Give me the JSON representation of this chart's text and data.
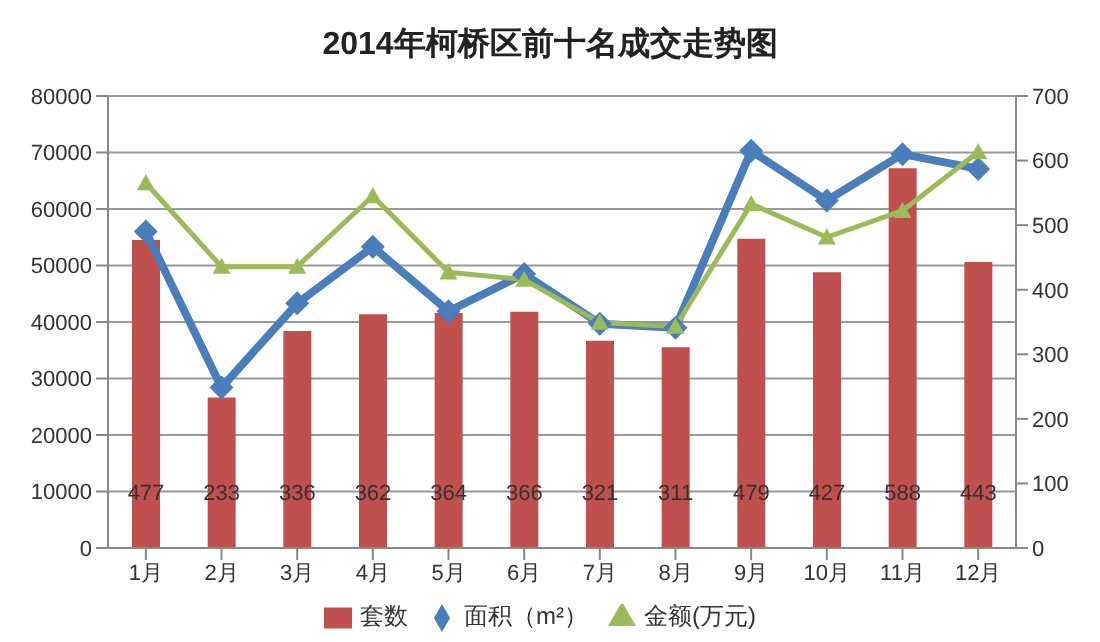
{
  "chart_data": {
    "type": "bar",
    "title": "2014年柯桥区前十名成交走势图",
    "categories": [
      "1月",
      "2月",
      "3月",
      "4月",
      "5月",
      "6月",
      "7月",
      "8月",
      "9月",
      "10月",
      "11月",
      "12月"
    ],
    "series": [
      {
        "name": "套数",
        "axis": "y2",
        "color": "#c0504d",
        "values": [
          477,
          233,
          336,
          362,
          364,
          366,
          321,
          311,
          479,
          427,
          588,
          443
        ],
        "value_labels": [
          "477",
          "233",
          "336",
          "362",
          "364",
          "366",
          "321",
          "311",
          "479",
          "427",
          "588",
          "443"
        ]
      },
      {
        "name": "面积（m²）",
        "type": "line",
        "color": "#4a7ebb",
        "marker": "diamond",
        "values": [
          56000,
          28400,
          43300,
          53300,
          41900,
          48500,
          39700,
          39000,
          70300,
          61500,
          69700,
          67100
        ]
      },
      {
        "name": "金额(万元)",
        "type": "line",
        "color": "#9bbb59",
        "marker": "triangle",
        "values": [
          64600,
          49800,
          49800,
          62300,
          48800,
          47500,
          39900,
          39200,
          60900,
          55000,
          59700,
          70100
        ]
      }
    ],
    "ylim": [
      0,
      80000
    ],
    "yticks": [
      0,
      10000,
      20000,
      30000,
      40000,
      50000,
      60000,
      70000,
      80000
    ],
    "y2lim": [
      0,
      700
    ],
    "y2ticks": [
      0,
      100,
      200,
      300,
      400,
      500,
      600,
      700
    ],
    "grid": "y",
    "legend": "bottom"
  }
}
